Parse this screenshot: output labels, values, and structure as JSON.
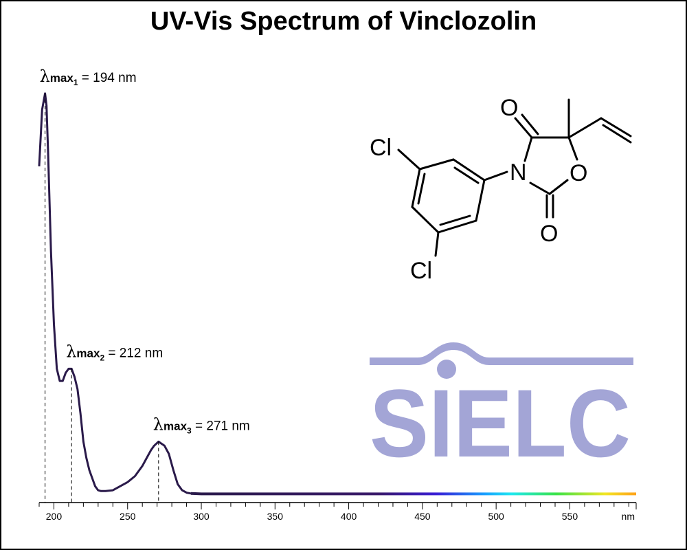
{
  "title": "UV-Vis Spectrum of Vinclozolin",
  "logo": {
    "text": "SIELC",
    "color": "#a3a5d6"
  },
  "molecule": {
    "atoms": [
      "Cl",
      "Cl",
      "N",
      "O",
      "O",
      "O"
    ]
  },
  "chart_data": {
    "type": "line",
    "title": "UV-Vis Spectrum of Vinclozolin",
    "xlabel": "",
    "x_unit_label": "nm",
    "ylabel": "",
    "xlim": [
      190,
      595
    ],
    "ylim": [
      0,
      1
    ],
    "grid": false,
    "xticks_major": [
      200,
      250,
      300,
      350,
      400,
      450,
      500,
      550
    ],
    "tick_labels": [
      "200",
      "250",
      "300",
      "350",
      "400",
      "450",
      "500",
      "550"
    ],
    "series": [
      {
        "color": "#2a1a4a",
        "x": [
          190,
          192,
          194,
          195,
          196,
          198,
          200,
          202,
          204,
          206,
          208,
          210,
          212,
          214,
          216,
          218,
          220,
          222,
          224,
          226,
          228,
          230,
          232,
          235,
          240,
          245,
          250,
          255,
          260,
          263,
          266,
          268,
          271,
          273,
          275,
          278,
          281,
          284,
          287,
          290,
          293,
          300,
          320,
          350,
          400,
          450,
          500,
          550,
          595
        ],
        "values": [
          0.81,
          0.95,
          0.99,
          0.96,
          0.85,
          0.6,
          0.42,
          0.31,
          0.28,
          0.28,
          0.3,
          0.31,
          0.31,
          0.29,
          0.26,
          0.2,
          0.13,
          0.09,
          0.06,
          0.04,
          0.02,
          0.01,
          0.008,
          0.008,
          0.01,
          0.02,
          0.03,
          0.045,
          0.07,
          0.09,
          0.11,
          0.12,
          0.13,
          0.125,
          0.12,
          0.1,
          0.06,
          0.025,
          0.01,
          0.004,
          0.002,
          0.001,
          0.001,
          0.001,
          0.001,
          0.001,
          0.001,
          0.001,
          0.001
        ]
      }
    ],
    "annotations": [
      {
        "label": "λ",
        "sub": "max",
        "index": "1",
        "text": "= 194 nm",
        "x": 194
      },
      {
        "label": "λ",
        "sub": "max",
        "index": "2",
        "text": "= 212 nm",
        "x": 212
      },
      {
        "label": "λ",
        "sub": "max",
        "index": "3",
        "text": "= 271 nm",
        "x": 271
      }
    ]
  }
}
